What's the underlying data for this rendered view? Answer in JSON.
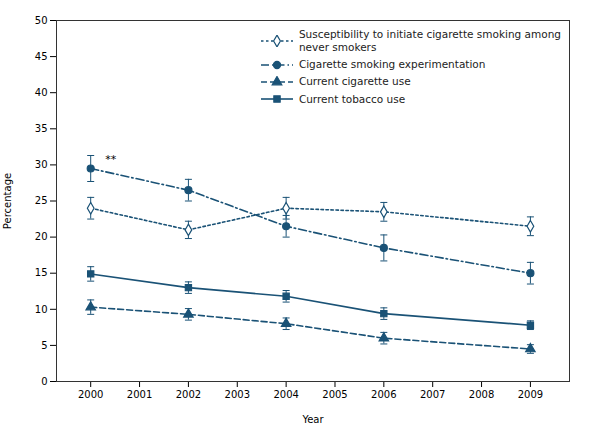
{
  "chart_data": {
    "type": "line",
    "x": [
      2000,
      2002,
      2004,
      2006,
      2009
    ],
    "series": [
      {
        "name": "Susceptibility to initiate cigarette smoking among\nnever smokers",
        "color": "#1a5276",
        "marker": "diamond",
        "line_style": "dotted",
        "values": [
          24.0,
          21.0,
          24.0,
          23.5,
          21.5
        ],
        "yerr_low": [
          1.5,
          1.2,
          1.5,
          1.3,
          1.3
        ],
        "yerr_high": [
          1.5,
          1.2,
          1.5,
          1.3,
          1.3
        ]
      },
      {
        "name": "Cigarette smoking experimentation",
        "color": "#1a5276",
        "marker": "circle",
        "line_style": "dashdot",
        "values": [
          29.5,
          26.5,
          21.5,
          18.5,
          15.0
        ],
        "yerr_low": [
          1.8,
          1.5,
          1.5,
          1.8,
          1.5
        ],
        "yerr_high": [
          1.8,
          1.5,
          1.5,
          1.8,
          1.5
        ]
      },
      {
        "name": "Current cigarette use",
        "color": "#1a5276",
        "marker": "triangle",
        "line_style": "dashed",
        "values": [
          10.3,
          9.3,
          8.0,
          6.0,
          4.5
        ],
        "yerr_low": [
          1.0,
          0.8,
          0.8,
          0.8,
          0.6
        ],
        "yerr_high": [
          1.0,
          0.8,
          0.8,
          0.8,
          0.6
        ]
      },
      {
        "name": "Current tobacco use",
        "color": "#1a5276",
        "marker": "square",
        "line_style": "solid",
        "values": [
          14.9,
          13.0,
          11.8,
          9.4,
          7.8
        ],
        "yerr_low": [
          1.0,
          0.8,
          0.8,
          0.8,
          0.6
        ],
        "yerr_high": [
          1.0,
          0.8,
          0.8,
          0.8,
          0.6
        ]
      }
    ],
    "annotations": [
      {
        "text": "**",
        "x": 2000.3,
        "y": 30.2
      }
    ],
    "xlabel": "Year",
    "ylabel": "Percentage",
    "xlim": [
      1999.3,
      2009.8
    ],
    "xticks": [
      2000,
      2001,
      2002,
      2003,
      2004,
      2005,
      2006,
      2007,
      2008,
      2009
    ],
    "ylim": [
      0,
      50
    ],
    "yticks": [
      0,
      5,
      10,
      15,
      20,
      25,
      30,
      35,
      40,
      45,
      50
    ],
    "legend": "upper right"
  }
}
